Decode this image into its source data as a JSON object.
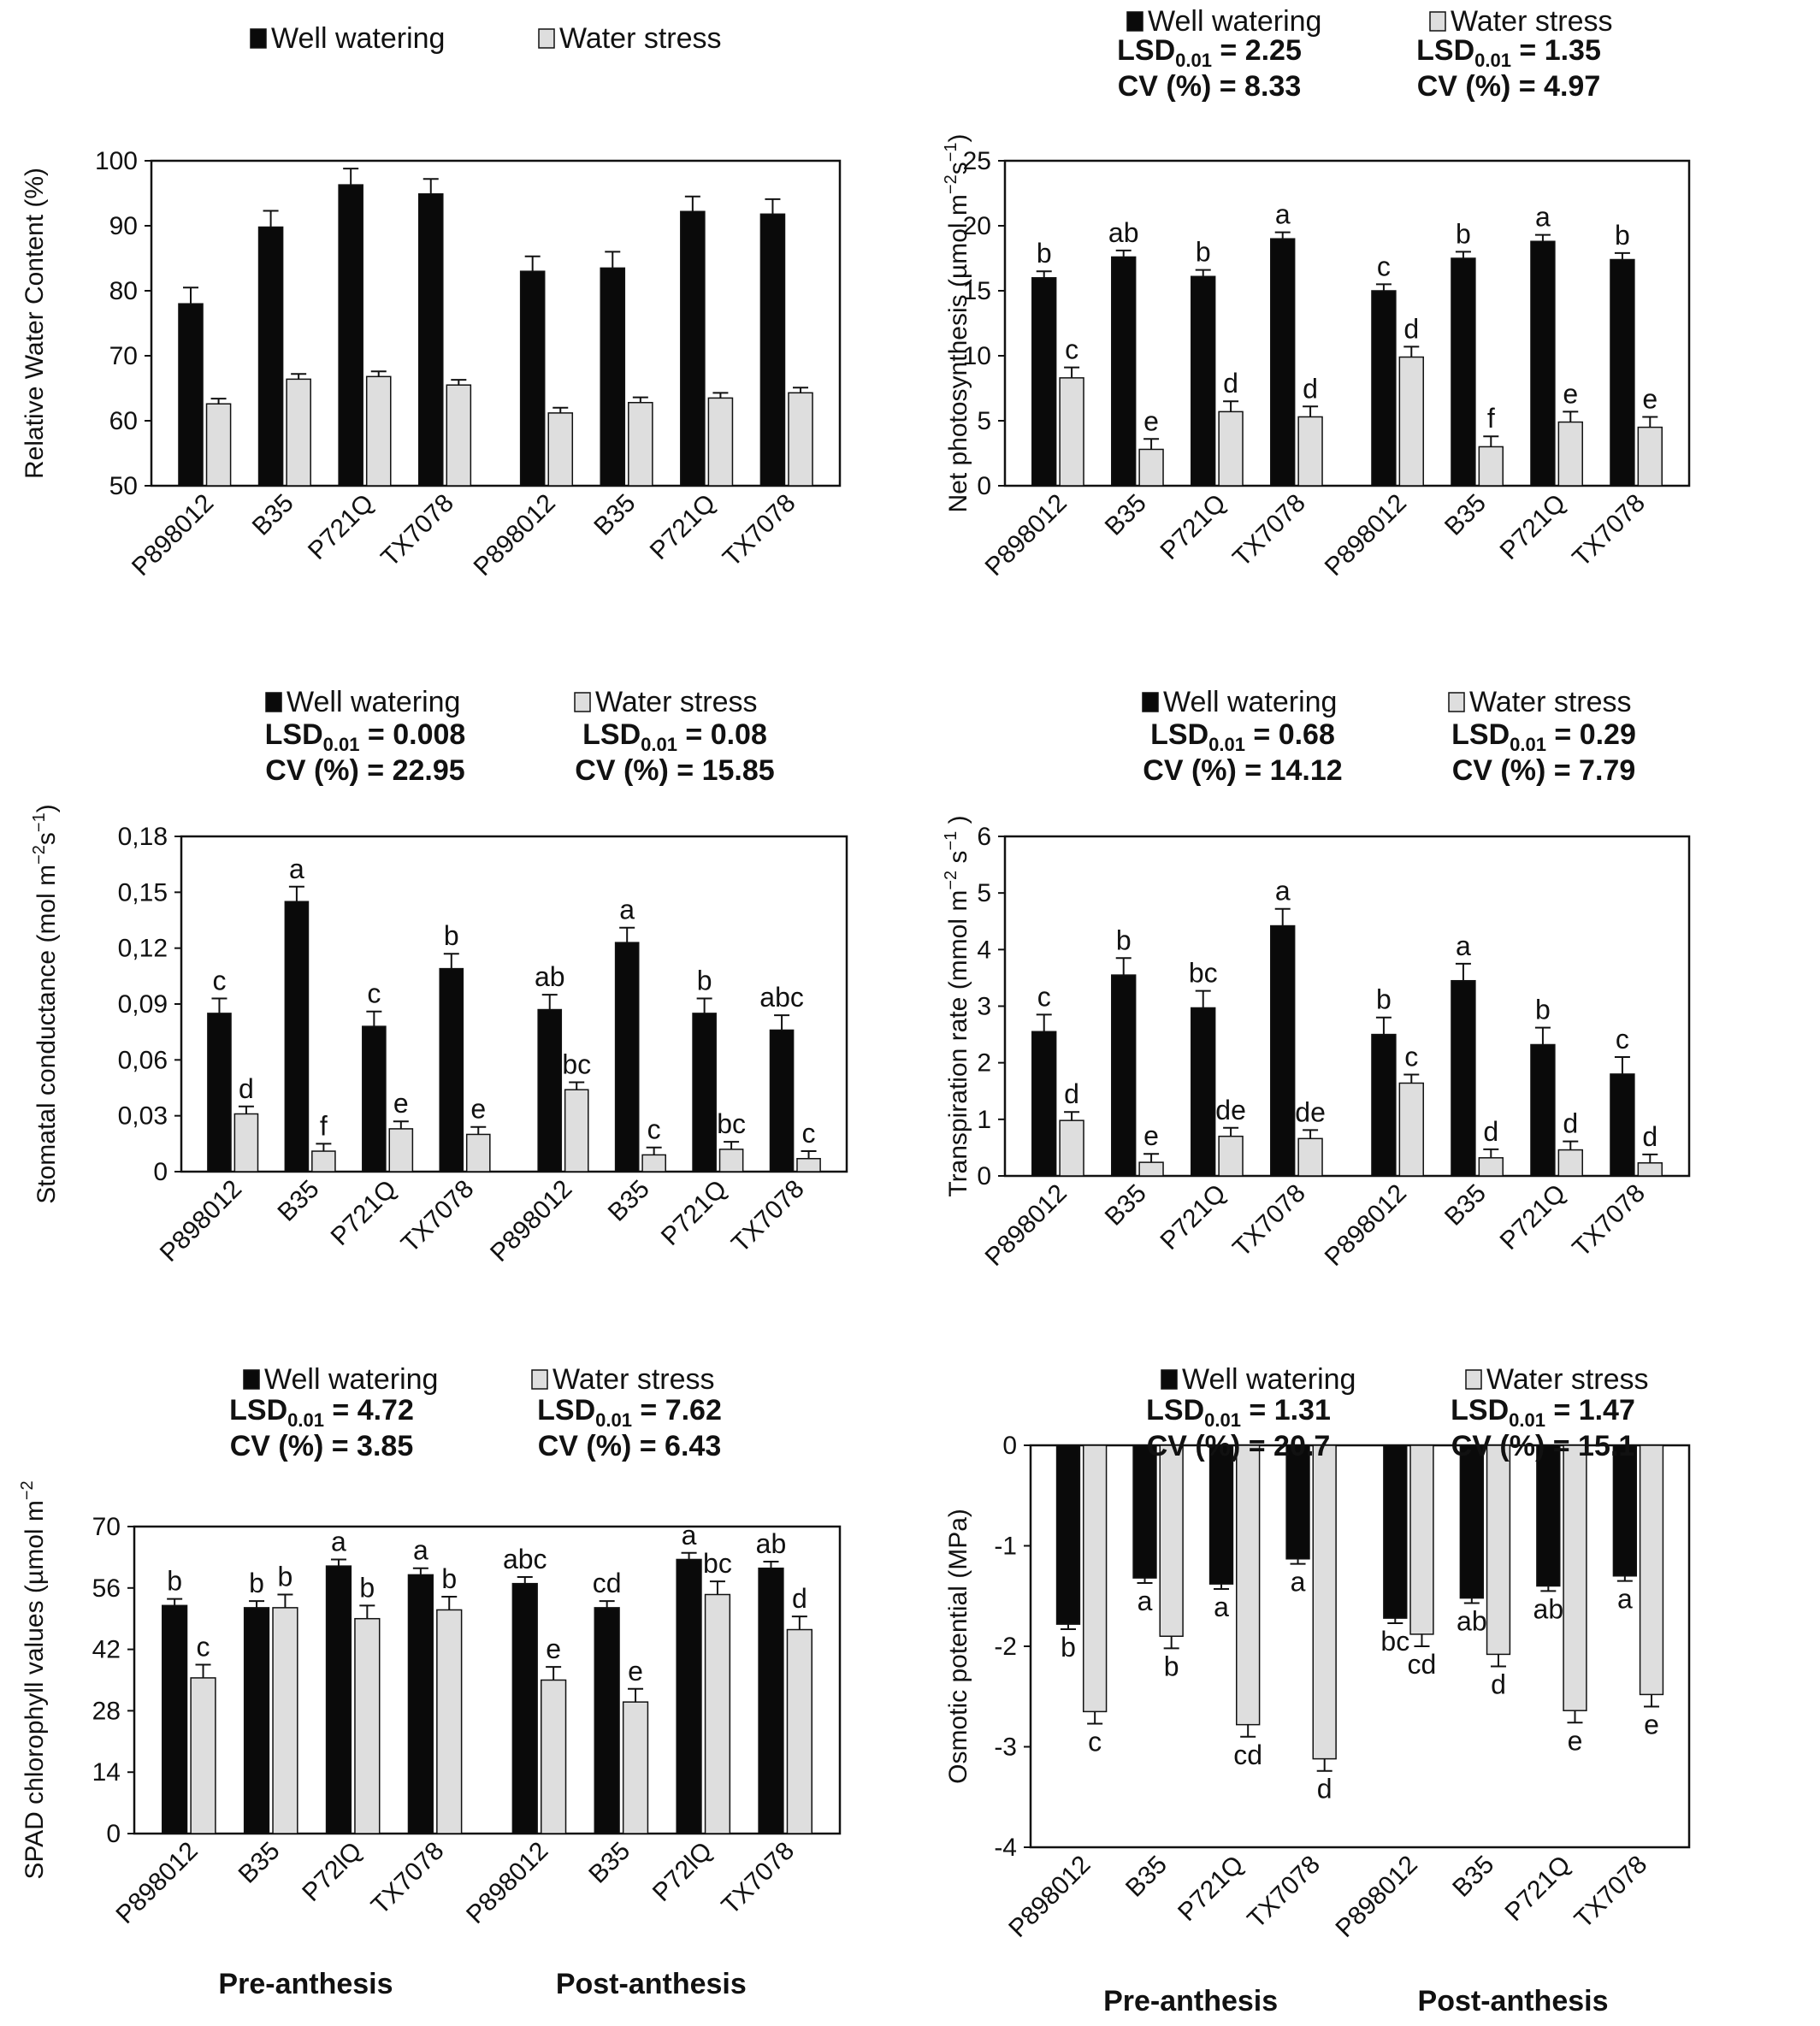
{
  "groups": [
    "P898012",
    "B35",
    "P721Q",
    "TX7078"
  ],
  "colors": {
    "well": "#0a0a0a",
    "stress": "#dedede",
    "axis": "#111111"
  },
  "charts": [
    {
      "id": "rwc",
      "legend": [
        "Well watering",
        "Water stress"
      ],
      "stats": [],
      "ylabel": "Relative Water Content (%)",
      "ylabel_sup": "",
      "ylabel_tail": "",
      "x_labels": [
        "P898012",
        "B35",
        "P721Q",
        "TX7078",
        "P898012",
        "B35",
        "P721Q",
        "TX7078"
      ],
      "periods": [],
      "chart_data": {
        "type": "bar",
        "ylim": [
          50,
          100
        ],
        "yticks": [
          "50",
          "60",
          "70",
          "80",
          "90",
          "100"
        ],
        "ytick_values": [
          50,
          60,
          70,
          80,
          90,
          100
        ],
        "categories": [
          "P898012",
          "B35",
          "P721Q",
          "TX7078",
          "P898012",
          "B35",
          "P721Q",
          "TX7078"
        ],
        "series": [
          {
            "name": "Well watering",
            "values": [
              78,
              89.8,
              96.3,
              94.9,
              83,
              83.5,
              92.2,
              91.8
            ],
            "errors": [
              2.5,
              2.5,
              2.5,
              2.3,
              2.3,
              2.5,
              2.3,
              2.3
            ],
            "letters": [
              "",
              "",
              "",
              "",
              "",
              "",
              "",
              ""
            ]
          },
          {
            "name": "Water stress",
            "values": [
              62.6,
              66.4,
              66.8,
              65.5,
              61.2,
              62.8,
              63.5,
              64.3
            ],
            "errors": [
              0.8,
              0.8,
              0.8,
              0.8,
              0.8,
              0.8,
              0.8,
              0.8
            ],
            "letters": [
              "",
              "",
              "",
              "",
              "",
              "",
              "",
              ""
            ]
          }
        ]
      }
    },
    {
      "id": "netpho",
      "legend": [
        "Well watering",
        "Water stress"
      ],
      "stats": [
        {
          "lsd_label": "LSD",
          "lsd_sub": "0.01",
          "lsd_value": " = 2.25",
          "cv": "CV (%) = 8.33"
        },
        {
          "lsd_label": "LSD",
          "lsd_sub": "0.01",
          "lsd_value": " = 1.35",
          "cv": "CV (%) = 4.97"
        }
      ],
      "ylabel": "Net photosynthesis (µmol m",
      "ylabel_sup": "−2",
      "ylabel_mid": "s",
      "ylabel_sup2": "−1",
      "ylabel_tail": ")",
      "x_labels": [
        "P898012",
        "B35",
        "P721Q",
        "TX7078",
        "P898012",
        "B35",
        "P721Q",
        "TX7078"
      ],
      "periods": [],
      "chart_data": {
        "type": "bar",
        "ylim": [
          0,
          25
        ],
        "yticks": [
          "0",
          "5",
          "10",
          "15",
          "20",
          "25"
        ],
        "ytick_values": [
          0,
          5,
          10,
          15,
          20,
          25
        ],
        "categories": [
          "P898012",
          "B35",
          "P721Q",
          "TX7078",
          "P898012",
          "B35",
          "P721Q",
          "TX7078"
        ],
        "series": [
          {
            "name": "Well watering",
            "values": [
              16,
              17.6,
              16.1,
              19,
              15,
              17.5,
              18.8,
              17.4
            ],
            "errors": [
              0.5,
              0.5,
              0.5,
              0.5,
              0.5,
              0.5,
              0.5,
              0.5
            ],
            "letters": [
              "b",
              "ab",
              "b",
              "a",
              "c",
              "b",
              "a",
              "b"
            ]
          },
          {
            "name": "Water stress",
            "values": [
              8.3,
              2.8,
              5.7,
              5.3,
              9.9,
              3,
              4.9,
              4.5
            ],
            "errors": [
              0.8,
              0.8,
              0.8,
              0.8,
              0.8,
              0.8,
              0.8,
              0.8
            ],
            "letters": [
              "c",
              "e",
              "d",
              "d",
              "d",
              "f",
              "e",
              "e"
            ]
          }
        ]
      }
    },
    {
      "id": "stomatal",
      "legend": [
        "Well watering",
        "Water stress"
      ],
      "stats": [
        {
          "lsd_label": "LSD",
          "lsd_sub": "0.01",
          "lsd_value": " = 0.008",
          "cv": "CV (%) = 22.95"
        },
        {
          "lsd_label": "LSD",
          "lsd_sub": "0.01",
          "lsd_value": " = 0.08",
          "cv": "CV (%) = 15.85"
        }
      ],
      "ylabel": "Stomatal conductance (mol m",
      "ylabel_sup": "−2",
      "ylabel_mid": "s",
      "ylabel_sup2": "−1",
      "ylabel_tail": ")",
      "x_labels": [
        "P898012",
        "B35",
        "P721Q",
        "TX7078",
        "P898012",
        "B35",
        "P721Q",
        "TX7078"
      ],
      "periods": [],
      "chart_data": {
        "type": "bar",
        "ylim": [
          0,
          0.18
        ],
        "yticks": [
          "0",
          "0,03",
          "0,06",
          "0,09",
          "0,12",
          "0,15",
          "0,18"
        ],
        "ytick_values": [
          0,
          0.03,
          0.06,
          0.09,
          0.12,
          0.15,
          0.18
        ],
        "categories": [
          "P898012",
          "B35",
          "P721Q",
          "TX7078",
          "P898012",
          "B35",
          "P721Q",
          "TX7078"
        ],
        "series": [
          {
            "name": "Well watering",
            "values": [
              0.085,
              0.145,
              0.078,
              0.109,
              0.087,
              0.123,
              0.085,
              0.076
            ],
            "errors": [
              0.008,
              0.008,
              0.008,
              0.008,
              0.008,
              0.008,
              0.008,
              0.008
            ],
            "letters": [
              "c",
              "a",
              "c",
              "b",
              "ab",
              "a",
              "b",
              "abc"
            ]
          },
          {
            "name": "Water stress",
            "values": [
              0.031,
              0.011,
              0.023,
              0.02,
              0.044,
              0.009,
              0.012,
              0.007
            ],
            "errors": [
              0.004,
              0.004,
              0.004,
              0.004,
              0.004,
              0.004,
              0.004,
              0.004
            ],
            "letters": [
              "d",
              "f",
              "e",
              "e",
              "bc",
              "c",
              "bc",
              "c"
            ]
          }
        ]
      }
    },
    {
      "id": "transp",
      "legend": [
        "Well watering",
        "Water stress"
      ],
      "stats": [
        {
          "lsd_label": "LSD",
          "lsd_sub": "0.01",
          "lsd_value": " = 0.68",
          "cv": "CV (%) = 14.12"
        },
        {
          "lsd_label": "LSD",
          "lsd_sub": "0.01",
          "lsd_value": " = 0.29",
          "cv": "CV (%) = 7.79"
        }
      ],
      "ylabel": "Transpiration rate (mmol m",
      "ylabel_sup": "−2",
      "ylabel_mid": " s",
      "ylabel_sup2": "−1",
      "ylabel_tail": " )",
      "x_labels": [
        "P898012",
        "B35",
        "P721Q",
        "TX7078",
        "P898012",
        "B35",
        "P721Q",
        "TX7078"
      ],
      "periods": [],
      "chart_data": {
        "type": "bar",
        "ylim": [
          0,
          6
        ],
        "yticks": [
          "0",
          "1",
          "2",
          "3",
          "4",
          "5",
          "6"
        ],
        "ytick_values": [
          0,
          1,
          2,
          3,
          4,
          5,
          6
        ],
        "categories": [
          "P898012",
          "B35",
          "P721Q",
          "TX7078",
          "P898012",
          "B35",
          "P721Q",
          "TX7078"
        ],
        "series": [
          {
            "name": "Well watering",
            "values": [
              2.55,
              3.55,
              2.97,
              4.42,
              2.5,
              3.45,
              2.32,
              1.8
            ],
            "errors": [
              0.3,
              0.3,
              0.3,
              0.3,
              0.3,
              0.3,
              0.3,
              0.3
            ],
            "letters": [
              "c",
              "b",
              "bc",
              "a",
              "b",
              "a",
              "b",
              "c"
            ]
          },
          {
            "name": "Water stress",
            "values": [
              0.98,
              0.24,
              0.7,
              0.66,
              1.64,
              0.32,
              0.46,
              0.23
            ],
            "errors": [
              0.15,
              0.15,
              0.15,
              0.15,
              0.15,
              0.15,
              0.15,
              0.15
            ],
            "letters": [
              "d",
              "e",
              "de",
              "de",
              "c",
              "d",
              "d",
              "d"
            ]
          }
        ]
      }
    },
    {
      "id": "spad",
      "legend": [
        "Well watering",
        "Water stress"
      ],
      "stats": [
        {
          "lsd_label": "LSD",
          "lsd_sub": "0.01",
          "lsd_value": " = 4.72",
          "cv": "CV (%) = 3.85"
        },
        {
          "lsd_label": "LSD",
          "lsd_sub": "0.01",
          "lsd_value": " = 7.62",
          "cv": "CV (%) = 6.43"
        }
      ],
      "ylabel": "SPAD chlorophyll values (µmol m",
      "ylabel_sup": "−2",
      "ylabel_tail": "",
      "x_labels": [
        "P898012",
        "B35",
        "P72lQ",
        "TX7078",
        "P898012",
        "B35",
        "P72lQ",
        "TX7078"
      ],
      "periods": [
        "Pre-anthesis",
        "Post-anthesis"
      ],
      "chart_data": {
        "type": "bar",
        "ylim": [
          0,
          70
        ],
        "yticks": [
          "0",
          "14",
          "28",
          "42",
          "56",
          "70"
        ],
        "ytick_values": [
          0,
          14,
          28,
          42,
          56,
          70
        ],
        "categories": [
          "P898012",
          "B35",
          "P72lQ",
          "TX7078",
          "P898012",
          "B35",
          "P72lQ",
          "TX7078"
        ],
        "series": [
          {
            "name": "Well watering",
            "values": [
              52,
              51.5,
              61,
              59,
              57,
              51.5,
              62.5,
              60.5
            ],
            "errors": [
              1.5,
              1.5,
              1.5,
              1.5,
              1.5,
              1.5,
              1.5,
              1.5
            ],
            "letters": [
              "b",
              "b",
              "a",
              "a",
              "abc",
              "cd",
              "a",
              "ab"
            ]
          },
          {
            "name": "Water stress",
            "values": [
              35.5,
              51.5,
              49,
              51,
              35,
              30,
              54.5,
              46.5
            ],
            "errors": [
              3,
              3,
              3,
              3,
              3,
              3,
              3,
              3
            ],
            "letters": [
              "c",
              "b",
              "b",
              "b",
              "e",
              "e",
              "bc",
              "d"
            ]
          }
        ]
      }
    },
    {
      "id": "osmotic",
      "legend": [
        "Well watering",
        "Water stress"
      ],
      "stats": [
        {
          "lsd_label": "LSD",
          "lsd_sub": "0.01",
          "lsd_value": " = 1.31",
          "cv": "CV (%) = 20.7"
        },
        {
          "lsd_label": "LSD",
          "lsd_sub": "0.01",
          "lsd_value": " = 1.47",
          "cv": "CV (%) = 15.1"
        }
      ],
      "ylabel": "Osmotic potential (MPa)",
      "ylabel_sup": "",
      "ylabel_tail": "",
      "x_labels": [
        "P898012",
        "B35",
        "P721Q",
        "TX7078",
        "P898012",
        "B35",
        "P721Q",
        "TX7078"
      ],
      "periods": [
        "Pre-anthesis",
        "Post-anthesis"
      ],
      "chart_data": {
        "type": "bar",
        "ylim": [
          -4,
          0
        ],
        "yticks": [
          "-4",
          "-3",
          "-2",
          "-1",
          "0"
        ],
        "ytick_values": [
          -4,
          -3,
          -2,
          -1,
          0
        ],
        "categories": [
          "P898012",
          "B35",
          "P721Q",
          "TX7078",
          "P898012",
          "B35",
          "P721Q",
          "TX7078"
        ],
        "series": [
          {
            "name": "Well watering",
            "values": [
              -1.78,
              -1.32,
              -1.38,
              -1.13,
              -1.72,
              -1.52,
              -1.4,
              -1.3
            ],
            "errors": [
              0.05,
              0.05,
              0.05,
              0.05,
              0.05,
              0.05,
              0.05,
              0.05
            ],
            "letters": [
              "b",
              "a",
              "a",
              "a",
              "bc",
              "ab",
              "ab",
              "a"
            ]
          },
          {
            "name": "Water stress",
            "values": [
              -2.65,
              -1.9,
              -2.78,
              -3.12,
              -1.88,
              -2.08,
              -2.64,
              -2.48
            ],
            "errors": [
              0.12,
              0.12,
              0.12,
              0.12,
              0.12,
              0.12,
              0.12,
              0.12
            ],
            "letters": [
              "c",
              "b",
              "cd",
              "d",
              "cd",
              "d",
              "e",
              "e"
            ]
          }
        ]
      }
    }
  ]
}
